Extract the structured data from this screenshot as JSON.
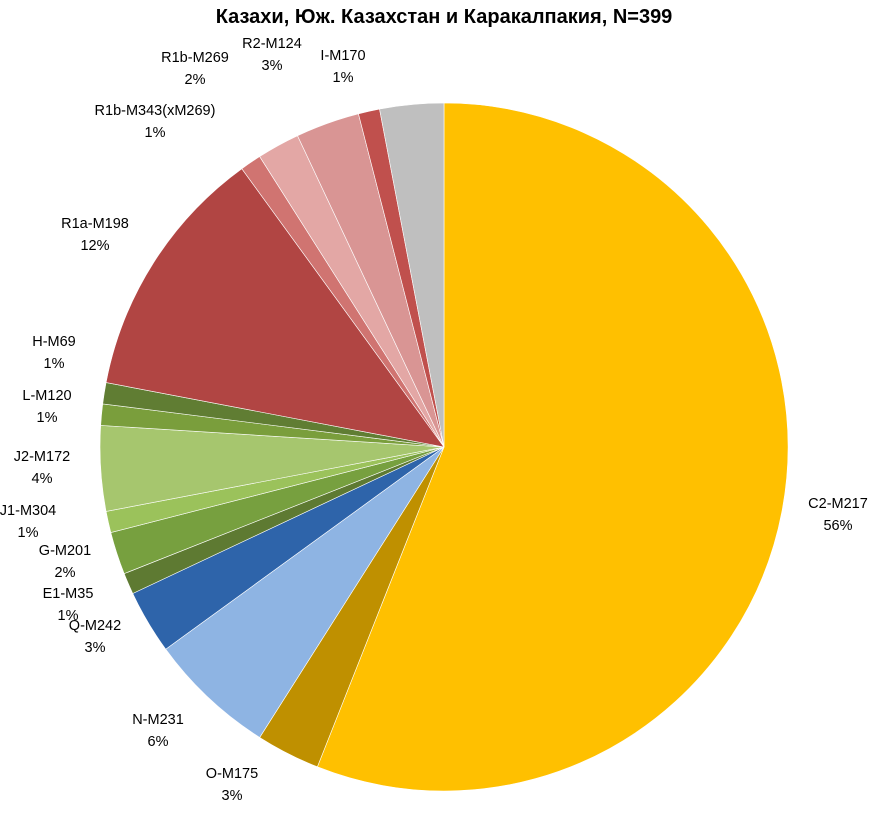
{
  "chart_data": {
    "type": "pie",
    "title": "Казахи, Юж. Казахстан и Каракалпакия, N=399",
    "start_angle_deg": 0,
    "direction": "clockwise",
    "legend": "none",
    "slices": [
      {
        "label": "C2-M217",
        "pct_label": "56%",
        "value": 56.0,
        "color": "#FFC000"
      },
      {
        "label": "O-M175",
        "pct_label": "3%",
        "value": 3.0,
        "color": "#BF9000"
      },
      {
        "label": "N-M231",
        "pct_label": "6%",
        "value": 6.0,
        "color": "#8EB4E3"
      },
      {
        "label": "Q-M242",
        "pct_label": "3%",
        "value": 3.0,
        "color": "#2E64AA"
      },
      {
        "label": "E1-M35",
        "pct_label": "1%",
        "value": 1.0,
        "color": "#5E7A32"
      },
      {
        "label": "G-M201",
        "pct_label": "2%",
        "value": 2.0,
        "color": "#77A03F"
      },
      {
        "label": "J1-M304",
        "pct_label": "1%",
        "value": 1.0,
        "color": "#9BC25B"
      },
      {
        "label": "J2-M172",
        "pct_label": "4%",
        "value": 4.0,
        "color": "#A6C66E"
      },
      {
        "label": "L-M120",
        "pct_label": "1%",
        "value": 1.0,
        "color": "#7A9E3C"
      },
      {
        "label": "H-M69",
        "pct_label": "1%",
        "value": 1.0,
        "color": "#607D33"
      },
      {
        "label": "R1a-M198",
        "pct_label": "12%",
        "value": 12.0,
        "color": "#B14543"
      },
      {
        "label": "R1b-M343(xM269)",
        "pct_label": "1%",
        "value": 1.0,
        "color": "#D07471"
      },
      {
        "label": "R1b-M269",
        "pct_label": "2%",
        "value": 2.0,
        "color": "#E3A7A5"
      },
      {
        "label": "R2-M124",
        "pct_label": "3%",
        "value": 3.0,
        "color": "#D99594"
      },
      {
        "label": "I-M170",
        "pct_label": "1%",
        "value": 1.0,
        "color": "#C0504D"
      },
      {
        "label": "",
        "pct_label": "",
        "value": 3.0,
        "color": "#BFBFBF"
      }
    ]
  }
}
